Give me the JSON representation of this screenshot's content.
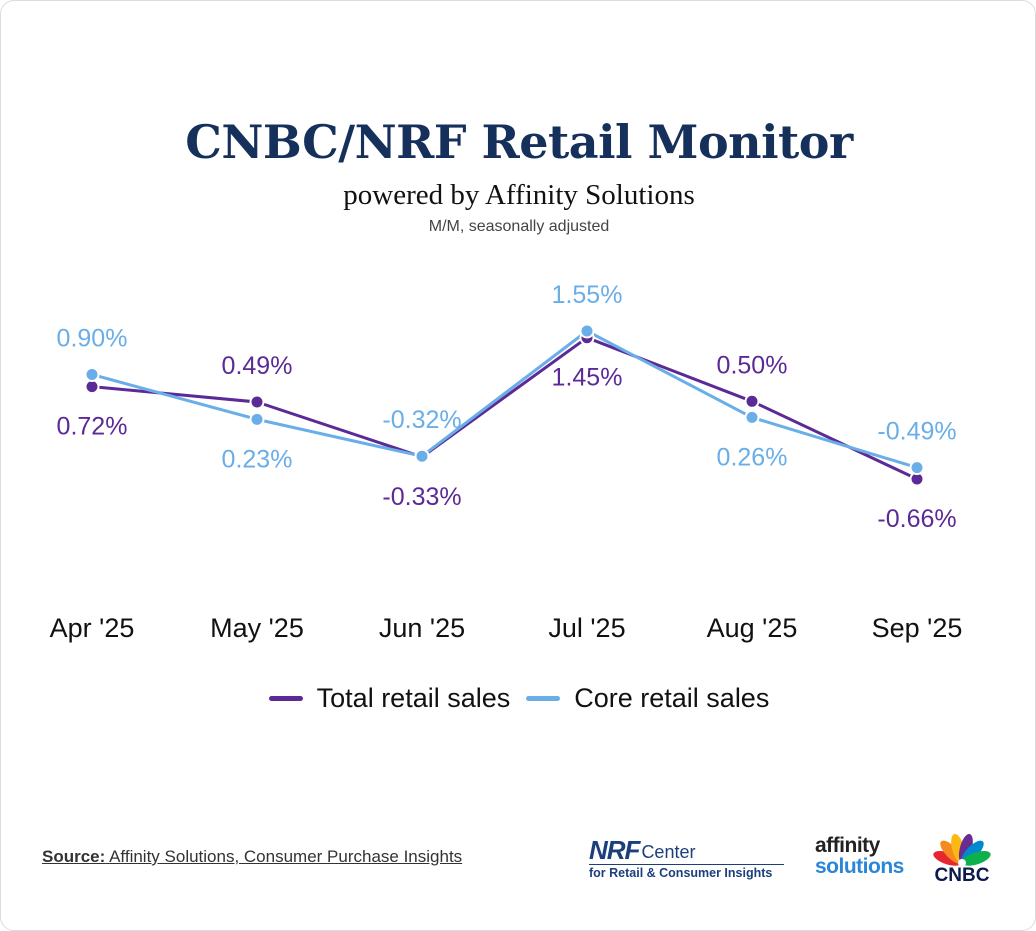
{
  "header": {
    "title": "CNBC/NRF Retail Monitor",
    "subtitle": "powered by Affinity Solutions",
    "note": "M/M, seasonally adjusted"
  },
  "chart_data": {
    "type": "line",
    "title": "CNBC/NRF Retail Monitor",
    "subtitle": "powered by Affinity Solutions",
    "ylabel": "M/M, seasonally adjusted",
    "xlabel": "",
    "categories": [
      "Apr '25",
      "May '25",
      "Jun '25",
      "Jul '25",
      "Aug '25",
      "Sep '25"
    ],
    "ylim": [
      -0.66,
      1.55
    ],
    "grid": false,
    "legend_position": "bottom-center",
    "series": [
      {
        "name": "Total retail sales",
        "color": "#5b2a96",
        "values": [
          0.72,
          0.49,
          -0.33,
          1.45,
          0.5,
          -0.66
        ],
        "labels": [
          "0.72%",
          "0.49%",
          "-0.33%",
          "1.45%",
          "0.50%",
          "-0.66%"
        ]
      },
      {
        "name": "Core retail sales",
        "color": "#6aaee8",
        "values": [
          0.9,
          0.23,
          -0.32,
          1.55,
          0.26,
          -0.49
        ],
        "labels": [
          "0.90%",
          "0.23%",
          "-0.32%",
          "1.55%",
          "0.26%",
          "-0.49%"
        ]
      }
    ]
  },
  "legend": {
    "items": [
      {
        "label": "Total retail sales",
        "color": "#5b2a96"
      },
      {
        "label": "Core retail sales",
        "color": "#6aaee8"
      }
    ]
  },
  "footer": {
    "source_label": "Source:",
    "source_text": "Affinity Solutions, Consumer Purchase Insights",
    "logos": {
      "nrf_mark": "NRF",
      "nrf_center": "Center",
      "nrf_tagline": "for Retail & Consumer Insights",
      "affinity_line1": "affinity",
      "affinity_line2": "solutions",
      "cnbc": "CNBC"
    }
  }
}
